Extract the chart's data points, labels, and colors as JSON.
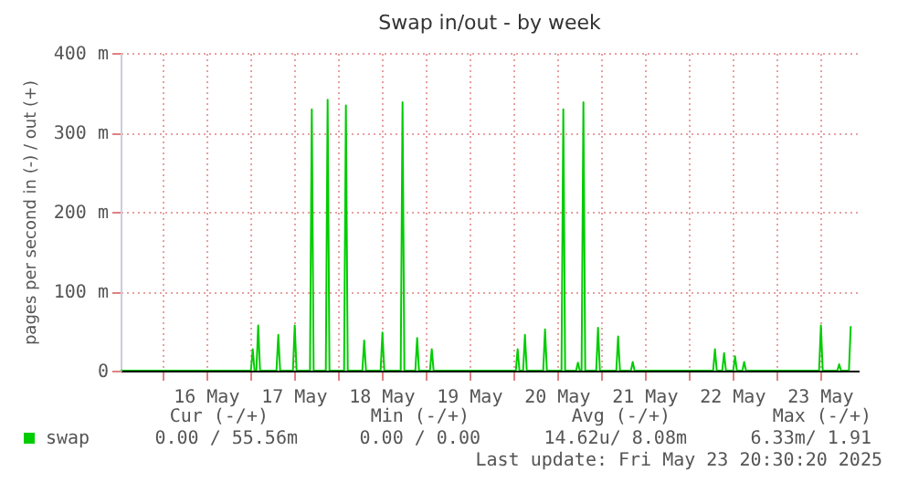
{
  "chart_data": {
    "type": "line",
    "title": "Swap in/out - by week",
    "ylabel": "pages per second in (-) / out (+)",
    "xlim": [
      "2025-05-15T12:40",
      "2025-05-23T22:40"
    ],
    "ylim": [
      0,
      400
    ],
    "yticks": [
      0,
      {
        "value": 100,
        "label": "100 m"
      },
      {
        "value": 200,
        "label": "200 m"
      },
      {
        "value": 300,
        "label": "300 m"
      },
      {
        "value": 400,
        "label": "400 m"
      }
    ],
    "xticks": [
      {
        "value": "2025-05-16T00:00",
        "label": null
      },
      {
        "value": "2025-05-16T12:00",
        "label": "16 May"
      },
      {
        "value": "2025-05-17T00:00",
        "label": null
      },
      {
        "value": "2025-05-17T12:00",
        "label": "17 May"
      },
      {
        "value": "2025-05-18T00:00",
        "label": null
      },
      {
        "value": "2025-05-18T12:00",
        "label": "18 May"
      },
      {
        "value": "2025-05-19T00:00",
        "label": null
      },
      {
        "value": "2025-05-19T12:00",
        "label": "19 May"
      },
      {
        "value": "2025-05-20T00:00",
        "label": null
      },
      {
        "value": "2025-05-20T12:00",
        "label": "20 May"
      },
      {
        "value": "2025-05-21T00:00",
        "label": null
      },
      {
        "value": "2025-05-21T12:00",
        "label": "21 May"
      },
      {
        "value": "2025-05-22T00:00",
        "label": null
      },
      {
        "value": "2025-05-22T12:00",
        "label": "22 May"
      },
      {
        "value": "2025-05-23T00:00",
        "label": null
      },
      {
        "value": "2025-05-23T12:00",
        "label": "23 May"
      }
    ],
    "grid": true,
    "legend": "bottom",
    "marker": "none",
    "line_style": "solid",
    "series": [
      {
        "name": "swap",
        "color": "#00cc00",
        "x": [
          "2025-05-15T12:40",
          "2025-05-17T00:20",
          "2025-05-17T00:50",
          "2025-05-17T01:20",
          "2025-05-17T01:50",
          "2025-05-17T02:20",
          "2025-05-17T02:50",
          "2025-05-17T07:20",
          "2025-05-17T07:50",
          "2025-05-17T08:20",
          "2025-05-17T11:50",
          "2025-05-17T12:20",
          "2025-05-17T12:50",
          "2025-05-17T16:30",
          "2025-05-17T17:00",
          "2025-05-17T17:30",
          "2025-05-17T20:50",
          "2025-05-17T21:20",
          "2025-05-17T21:50",
          "2025-05-18T01:50",
          "2025-05-18T02:20",
          "2025-05-18T02:50",
          "2025-05-18T06:50",
          "2025-05-18T07:20",
          "2025-05-18T07:50",
          "2025-05-18T11:50",
          "2025-05-18T12:20",
          "2025-05-18T12:50",
          "2025-05-18T17:20",
          "2025-05-18T17:50",
          "2025-05-18T18:20",
          "2025-05-18T21:20",
          "2025-05-18T21:50",
          "2025-05-18T22:20",
          "2025-05-19T01:20",
          "2025-05-19T01:50",
          "2025-05-19T02:20",
          "2025-05-20T00:50",
          "2025-05-20T01:20",
          "2025-05-20T01:50",
          "2025-05-20T02:50",
          "2025-05-20T03:20",
          "2025-05-20T03:50",
          "2025-05-20T08:20",
          "2025-05-20T08:50",
          "2025-05-20T09:20",
          "2025-05-20T13:20",
          "2025-05-20T13:50",
          "2025-05-20T14:20",
          "2025-05-20T17:20",
          "2025-05-20T17:50",
          "2025-05-20T18:20",
          "2025-05-20T18:50",
          "2025-05-20T19:20",
          "2025-05-20T19:50",
          "2025-05-20T22:50",
          "2025-05-20T23:20",
          "2025-05-20T23:50",
          "2025-05-21T04:20",
          "2025-05-21T04:50",
          "2025-05-21T05:20",
          "2025-05-21T08:20",
          "2025-05-21T08:50",
          "2025-05-21T09:20",
          "2025-05-22T06:50",
          "2025-05-22T07:20",
          "2025-05-22T07:50",
          "2025-05-22T09:20",
          "2025-05-22T09:50",
          "2025-05-22T10:20",
          "2025-05-22T12:20",
          "2025-05-22T12:50",
          "2025-05-22T13:20",
          "2025-05-22T14:50",
          "2025-05-22T15:20",
          "2025-05-22T15:50",
          "2025-05-23T11:50",
          "2025-05-23T12:20",
          "2025-05-23T12:50",
          "2025-05-23T16:50",
          "2025-05-23T17:20",
          "2025-05-23T17:50",
          "2025-05-23T20:00",
          "2025-05-23T20:30"
        ],
        "values": [
          0,
          0,
          27,
          0,
          0,
          57,
          0,
          0,
          45,
          0,
          0,
          57,
          0,
          0,
          329,
          0,
          0,
          341,
          0,
          0,
          334,
          0,
          0,
          38,
          0,
          0,
          48,
          0,
          0,
          338,
          0,
          0,
          41,
          0,
          0,
          27,
          0,
          0,
          27,
          0,
          0,
          45,
          0,
          0,
          52,
          0,
          0,
          329,
          0,
          0,
          10,
          0,
          0,
          338,
          0,
          0,
          54,
          0,
          0,
          43,
          0,
          0,
          11,
          0,
          0,
          27,
          0,
          0,
          22,
          0,
          0,
          18,
          0,
          0,
          11,
          0,
          0,
          57,
          0,
          0,
          8,
          0,
          0,
          56
        ]
      }
    ],
    "annotations": [
      "Cur (-/+)",
      "Min (-/+)",
      "Avg (-/+)",
      "Max (-/+)",
      "0.00 / 55.56m",
      "0.00 /  0.00",
      "14.62u/  8.08m",
      "6.33m/  1.91",
      "Last update: Fri May 23 20:30:20 2025"
    ]
  }
}
